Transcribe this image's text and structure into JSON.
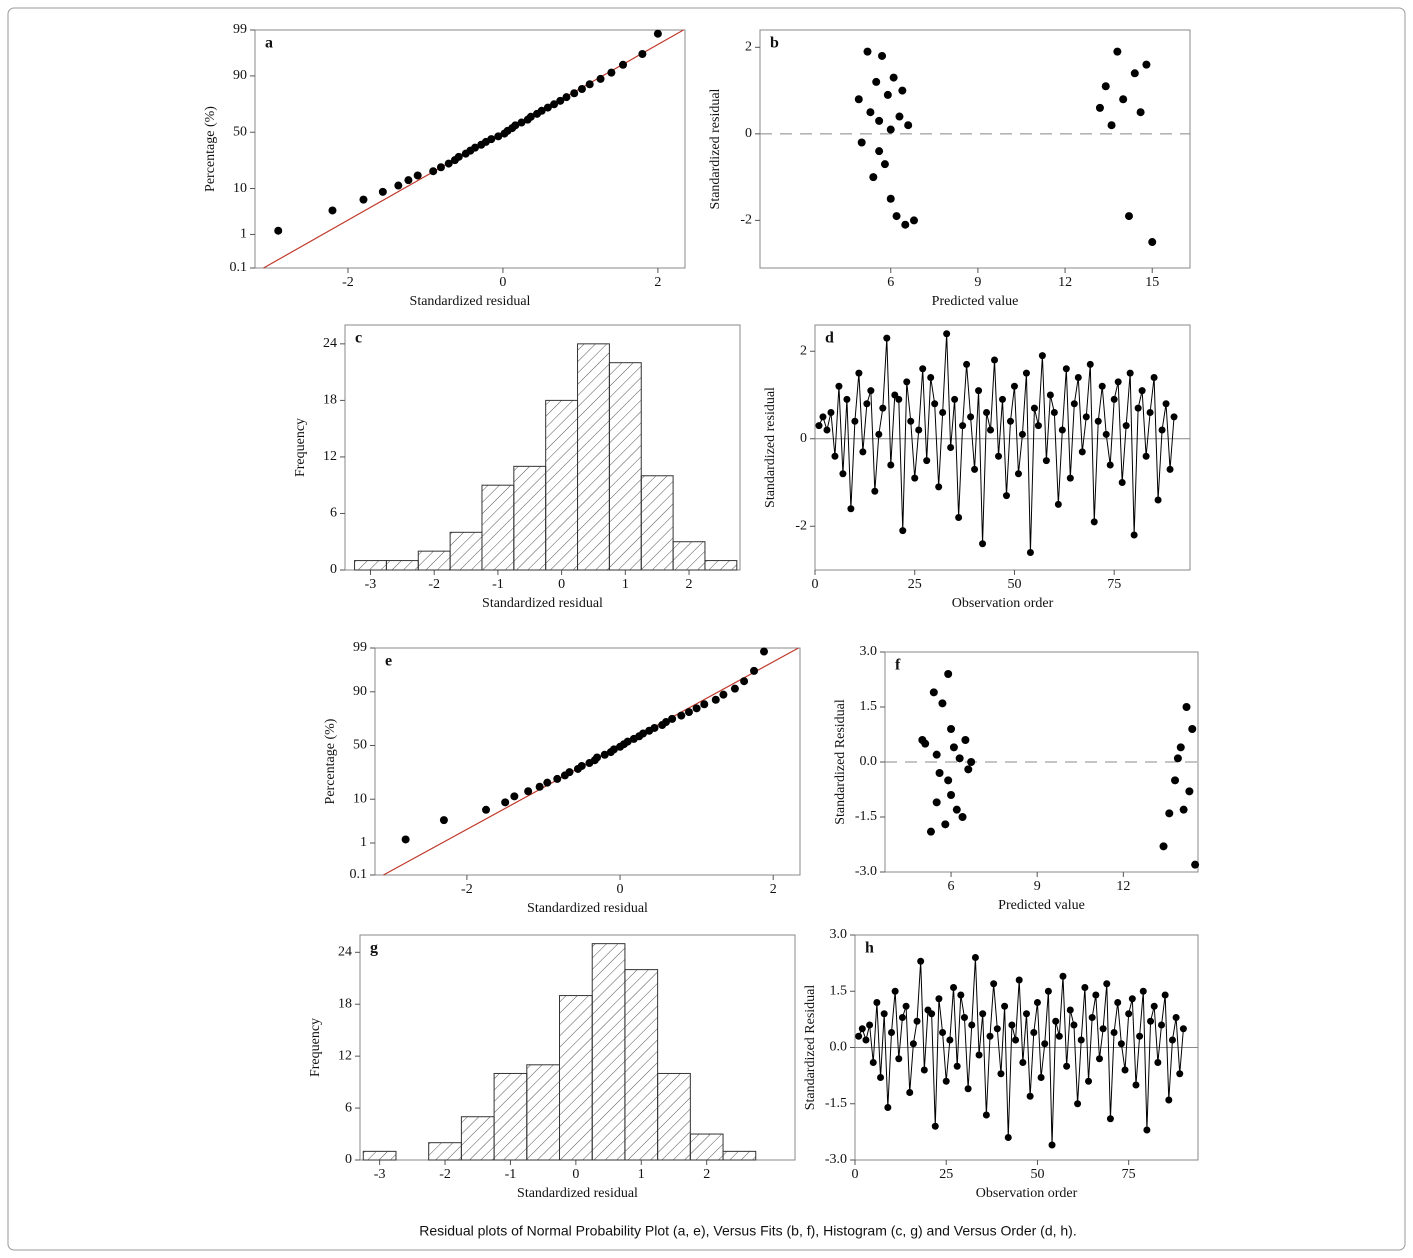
{
  "caption": "Residual plots of Normal Probability Plot (a, e), Versus Fits (b, f), Histogram (c, g) and Versus Order (d, h).",
  "chart_data": [
    {
      "type": "scatter",
      "label": "a",
      "scale": "probability",
      "xlabel": "Standardized residual",
      "ylabel": "Percentage (%)",
      "xlim": [
        -3.2,
        2.35
      ],
      "xticks": [
        -2,
        0,
        2
      ],
      "ylim": [
        0.1,
        99
      ],
      "yticks": [
        0.1,
        1,
        10,
        50,
        90,
        99
      ],
      "fit_line": {
        "x": [
          -3.09,
          2.33
        ],
        "y": [
          0.1,
          99
        ]
      },
      "color": "#000000",
      "line_color": "#c0392b",
      "x": [
        -2.9,
        -2.2,
        -1.8,
        -1.55,
        -1.35,
        -1.22,
        -1.1,
        -0.9,
        -0.8,
        -0.7,
        -0.62,
        -0.57,
        -0.48,
        -0.42,
        -0.36,
        -0.28,
        -0.22,
        -0.15,
        -0.06,
        0.02,
        0.06,
        0.12,
        0.16,
        0.24,
        0.32,
        0.36,
        0.44,
        0.5,
        0.58,
        0.66,
        0.74,
        0.82,
        0.92,
        1.02,
        1.12,
        1.26,
        1.4,
        1.55,
        1.8,
        2.0
      ],
      "values": [
        1.25,
        3.75,
        6.25,
        8.75,
        11.25,
        13.75,
        16.25,
        18.75,
        21.25,
        23.75,
        26.25,
        28.75,
        31.25,
        33.75,
        36.25,
        38.75,
        41.25,
        43.75,
        46.25,
        48.75,
        51.25,
        53.75,
        56.25,
        58.75,
        61.25,
        63.75,
        66.25,
        68.75,
        71.25,
        73.75,
        76.25,
        78.75,
        81.25,
        83.75,
        86.25,
        88.75,
        91.25,
        93.75,
        96.25,
        98.75
      ]
    },
    {
      "type": "scatter",
      "label": "b",
      "xlabel": "Predicted value",
      "ylabel": "Standardized residual",
      "xlim": [
        1.5,
        16.3
      ],
      "xticks": [
        6,
        9,
        12,
        15
      ],
      "ylim": [
        -3.1,
        2.4
      ],
      "yticks": [
        -2,
        0,
        2
      ],
      "hline": 0,
      "color": "#000000",
      "x": [
        4.9,
        5.0,
        5.2,
        5.3,
        5.4,
        5.5,
        5.6,
        5.7,
        5.8,
        5.9,
        6.0,
        6.1,
        6.2,
        6.3,
        6.4,
        6.5,
        6.6,
        5.6,
        6.0,
        6.8,
        13.2,
        13.4,
        13.6,
        13.8,
        14.0,
        14.2,
        14.4,
        14.6,
        15.0,
        14.8
      ],
      "values": [
        0.8,
        -0.2,
        1.9,
        0.5,
        -1.0,
        1.2,
        0.3,
        1.8,
        -0.7,
        0.9,
        0.1,
        1.3,
        -1.9,
        0.4,
        1.0,
        -2.1,
        0.2,
        -0.4,
        -1.5,
        -2.0,
        0.6,
        1.1,
        0.2,
        1.9,
        0.8,
        -1.9,
        1.4,
        0.5,
        -2.5,
        1.6
      ]
    },
    {
      "type": "histogram",
      "label": "c",
      "xlabel": "Standardized residual",
      "ylabel": "Frequency",
      "xlim": [
        -3.4,
        2.8
      ],
      "xticks": [
        -3,
        -2,
        -1,
        0,
        1,
        2
      ],
      "ylim": [
        0,
        26
      ],
      "yticks": [
        0,
        6,
        12,
        18,
        24
      ],
      "bins": [
        -3.25,
        -2.75,
        -2.25,
        -1.75,
        -1.25,
        -0.75,
        -0.25,
        0.25,
        0.75,
        1.25,
        1.75,
        2.25,
        2.75
      ],
      "values": [
        1,
        1,
        2,
        4,
        9,
        11,
        18,
        24,
        22,
        10,
        3,
        1
      ]
    },
    {
      "type": "order",
      "label": "d",
      "xlabel": "Observation order",
      "ylabel": "Standardized residual",
      "xlim": [
        0,
        94
      ],
      "xticks": [
        0,
        25,
        50,
        75
      ],
      "ylim": [
        -3,
        2.6
      ],
      "yticks": [
        -2,
        0,
        2
      ],
      "hline": 0,
      "color": "#000000",
      "x": [
        1,
        2,
        3,
        4,
        5,
        6,
        7,
        8,
        9,
        10,
        11,
        12,
        13,
        14,
        15,
        16,
        17,
        18,
        19,
        20,
        21,
        22,
        23,
        24,
        25,
        26,
        27,
        28,
        29,
        30,
        31,
        32,
        33,
        34,
        35,
        36,
        37,
        38,
        39,
        40,
        41,
        42,
        43,
        44,
        45,
        46,
        47,
        48,
        49,
        50,
        51,
        52,
        53,
        54,
        55,
        56,
        57,
        58,
        59,
        60,
        61,
        62,
        63,
        64,
        65,
        66,
        67,
        68,
        69,
        70,
        71,
        72,
        73,
        74,
        75,
        76,
        77,
        78,
        79,
        80,
        81,
        82,
        83,
        84,
        85,
        86,
        87,
        88,
        89,
        90
      ],
      "values": [
        0.3,
        0.5,
        0.2,
        0.6,
        -0.4,
        1.2,
        -0.8,
        0.9,
        -1.6,
        0.4,
        1.5,
        -0.3,
        0.8,
        1.1,
        -1.2,
        0.1,
        0.7,
        2.3,
        -0.6,
        1.0,
        0.9,
        -2.1,
        1.3,
        0.4,
        -0.9,
        0.2,
        1.6,
        -0.5,
        1.4,
        0.8,
        -1.1,
        0.6,
        2.4,
        -0.2,
        0.9,
        -1.8,
        0.3,
        1.7,
        0.5,
        -0.7,
        1.1,
        -2.4,
        0.6,
        0.2,
        1.8,
        -0.4,
        0.9,
        -1.3,
        0.4,
        1.2,
        -0.8,
        0.1,
        1.5,
        -2.6,
        0.7,
        0.3,
        1.9,
        -0.5,
        1.0,
        0.6,
        -1.5,
        0.2,
        1.6,
        -0.9,
        0.8,
        1.4,
        -0.3,
        0.5,
        1.7,
        -1.9,
        0.4,
        1.2,
        0.1,
        -0.6,
        0.9,
        1.3,
        -1.0,
        0.3,
        1.5,
        -2.2,
        0.7,
        1.1,
        -0.4,
        0.6,
        1.4,
        -1.4,
        0.2,
        0.8,
        -0.7,
        0.5
      ]
    },
    {
      "type": "scatter",
      "label": "e",
      "scale": "probability",
      "xlabel": "Standardized residual",
      "ylabel": "Percentage (%)",
      "xlim": [
        -3.2,
        2.35
      ],
      "xticks": [
        -2,
        0,
        2
      ],
      "ylim": [
        0.1,
        99
      ],
      "yticks": [
        0.1,
        1,
        10,
        50,
        90,
        99
      ],
      "fit_line": {
        "x": [
          -3.09,
          2.33
        ],
        "y": [
          0.1,
          99
        ]
      },
      "color": "#000000",
      "line_color": "#c0392b",
      "x": [
        -2.8,
        -2.3,
        -1.75,
        -1.5,
        -1.38,
        -1.2,
        -1.05,
        -0.95,
        -0.82,
        -0.72,
        -0.66,
        -0.55,
        -0.5,
        -0.4,
        -0.33,
        -0.3,
        -0.2,
        -0.12,
        -0.08,
        0.0,
        0.05,
        0.1,
        0.18,
        0.25,
        0.3,
        0.38,
        0.45,
        0.55,
        0.6,
        0.68,
        0.8,
        0.9,
        1.0,
        1.1,
        1.25,
        1.35,
        1.5,
        1.62,
        1.75,
        1.88
      ],
      "values": [
        1.25,
        3.75,
        6.25,
        8.75,
        11.25,
        13.75,
        16.25,
        18.75,
        21.25,
        23.75,
        26.25,
        28.75,
        31.25,
        33.75,
        36.25,
        38.75,
        41.25,
        43.75,
        46.25,
        48.75,
        51.25,
        53.75,
        56.25,
        58.75,
        61.25,
        63.75,
        66.25,
        68.75,
        71.25,
        73.75,
        76.25,
        78.75,
        81.25,
        83.75,
        86.25,
        88.75,
        91.25,
        93.75,
        96.25,
        98.75
      ]
    },
    {
      "type": "scatter",
      "label": "f",
      "xlabel": "Predicted value",
      "ylabel": "Standardized Residual",
      "xlim": [
        3.7,
        14.6
      ],
      "xticks": [
        6,
        9,
        12
      ],
      "ylim": [
        -3,
        3
      ],
      "yticks": [
        {
          "value": -3,
          "label": "-3.0"
        },
        {
          "value": -1.5,
          "label": "-1.5"
        },
        {
          "value": 0,
          "label": "0.0"
        },
        {
          "value": 1.5,
          "label": "1.5"
        },
        {
          "value": 3,
          "label": "3.0"
        }
      ],
      "hline": 0,
      "color": "#000000",
      "x": [
        5.0,
        5.1,
        5.3,
        5.4,
        5.5,
        5.6,
        5.7,
        5.8,
        5.9,
        6.0,
        6.1,
        5.9,
        6.2,
        6.3,
        6.4,
        6.5,
        6.6,
        5.5,
        6.0,
        6.7,
        13.4,
        13.6,
        13.8,
        14.0,
        14.1,
        14.2,
        14.3,
        14.4,
        14.5,
        13.9
      ],
      "values": [
        0.6,
        0.5,
        -1.9,
        1.9,
        0.2,
        -0.3,
        1.6,
        -1.7,
        2.4,
        -0.9,
        0.4,
        -0.5,
        -1.3,
        0.1,
        -1.5,
        0.6,
        -0.2,
        -1.1,
        0.9,
        0.0,
        -2.3,
        -1.4,
        -0.5,
        0.4,
        -1.3,
        1.5,
        -0.8,
        0.9,
        -2.8,
        0.1
      ]
    },
    {
      "type": "histogram",
      "label": "g",
      "xlabel": "Standardized residual",
      "ylabel": "Frequency",
      "xlim": [
        -3.3,
        3.35
      ],
      "xticks": [
        -3,
        -2,
        -1,
        0,
        1,
        2
      ],
      "ylim": [
        0,
        26
      ],
      "yticks": [
        0,
        6,
        12,
        18,
        24
      ],
      "bins": [
        -3.25,
        -2.75,
        -2.25,
        -1.75,
        -1.25,
        -0.75,
        -0.25,
        0.25,
        0.75,
        1.25,
        1.75,
        2.25,
        2.75
      ],
      "values": [
        1,
        0,
        2,
        5,
        10,
        11,
        19,
        25,
        22,
        10,
        3,
        1
      ]
    },
    {
      "type": "order",
      "label": "h",
      "xlabel": "Observation order",
      "ylabel": "Standardized Residual",
      "xlim": [
        0,
        94
      ],
      "xticks": [
        0,
        25,
        50,
        75
      ],
      "ylim": [
        -3,
        3
      ],
      "yticks": [
        {
          "value": -3,
          "label": "-3.0"
        },
        {
          "value": -1.5,
          "label": "-1.5"
        },
        {
          "value": 0,
          "label": "0.0"
        },
        {
          "value": 1.5,
          "label": "1.5"
        },
        {
          "value": 3,
          "label": "3.0"
        }
      ],
      "hline": 0,
      "color": "#000000",
      "x": [
        1,
        2,
        3,
        4,
        5,
        6,
        7,
        8,
        9,
        10,
        11,
        12,
        13,
        14,
        15,
        16,
        17,
        18,
        19,
        20,
        21,
        22,
        23,
        24,
        25,
        26,
        27,
        28,
        29,
        30,
        31,
        32,
        33,
        34,
        35,
        36,
        37,
        38,
        39,
        40,
        41,
        42,
        43,
        44,
        45,
        46,
        47,
        48,
        49,
        50,
        51,
        52,
        53,
        54,
        55,
        56,
        57,
        58,
        59,
        60,
        61,
        62,
        63,
        64,
        65,
        66,
        67,
        68,
        69,
        70,
        71,
        72,
        73,
        74,
        75,
        76,
        77,
        78,
        79,
        80,
        81,
        82,
        83,
        84,
        85,
        86,
        87,
        88,
        89,
        90
      ],
      "values": [
        0.3,
        0.5,
        0.2,
        0.6,
        -0.4,
        1.2,
        -0.8,
        0.9,
        -1.6,
        0.4,
        1.5,
        -0.3,
        0.8,
        1.1,
        -1.2,
        0.1,
        0.7,
        2.3,
        -0.6,
        1.0,
        0.9,
        -2.1,
        1.3,
        0.4,
        -0.9,
        0.2,
        1.6,
        -0.5,
        1.4,
        0.8,
        -1.1,
        0.6,
        2.4,
        -0.2,
        0.9,
        -1.8,
        0.3,
        1.7,
        0.5,
        -0.7,
        1.1,
        -2.4,
        0.6,
        0.2,
        1.8,
        -0.4,
        0.9,
        -1.3,
        0.4,
        1.2,
        -0.8,
        0.1,
        1.5,
        -2.6,
        0.7,
        0.3,
        1.9,
        -0.5,
        1.0,
        0.6,
        -1.5,
        0.2,
        1.6,
        -0.9,
        0.8,
        1.4,
        -0.3,
        0.5,
        1.7,
        -1.9,
        0.4,
        1.2,
        0.1,
        -0.6,
        0.9,
        1.3,
        -1.0,
        0.3,
        1.5,
        -2.2,
        0.7,
        1.1,
        -0.4,
        0.6,
        1.4,
        -1.4,
        0.2,
        0.8,
        -0.7,
        0.5
      ]
    }
  ]
}
